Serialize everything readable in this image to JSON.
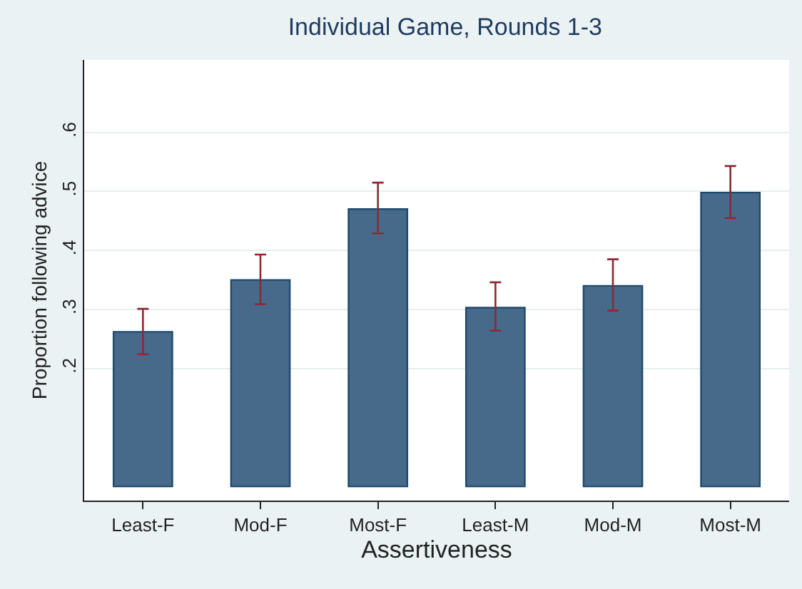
{
  "chart_data": {
    "type": "bar",
    "title": "Individual Game, Rounds 1-3",
    "xlabel": "Assertiveness",
    "ylabel": "Proportion following advice",
    "categories": [
      "Least-F",
      "Mod-F",
      "Most-F",
      "Least-M",
      "Mod-M",
      "Most-M"
    ],
    "values": [
      0.262,
      0.35,
      0.47,
      0.303,
      0.34,
      0.498
    ],
    "errors": [
      [
        0.224,
        0.301
      ],
      [
        0.309,
        0.393
      ],
      [
        0.429,
        0.515
      ],
      [
        0.264,
        0.346
      ],
      [
        0.298,
        0.385
      ],
      [
        0.455,
        0.543
      ]
    ],
    "color": "#476a8a",
    "ylim": [
      -0.024,
      0.723
    ],
    "yticks": [
      {
        "value": 0.2,
        "label": ".2"
      },
      {
        "value": 0.3,
        "label": ".3"
      },
      {
        "value": 0.4,
        "label": ".4"
      },
      {
        "value": 0.5,
        "label": ".5"
      },
      {
        "value": 0.6,
        "label": ".6"
      }
    ],
    "grid": "y",
    "legend": false
  }
}
